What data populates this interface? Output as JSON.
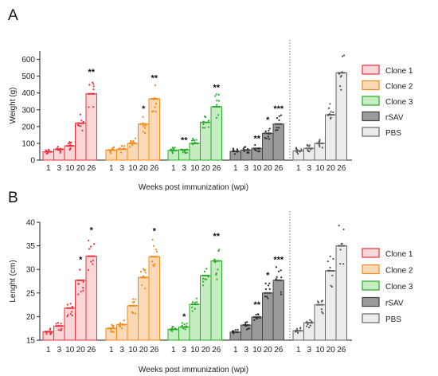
{
  "xlabel": "Weeks post immunization (wpi)",
  "groups": [
    {
      "name": "Clone 1",
      "fill": "#f9d6d8",
      "stroke": "#e8323b",
      "dot": "#e8323b"
    },
    {
      "name": "Clone 2",
      "fill": "#fbd9b5",
      "stroke": "#f28a1c",
      "dot": "#f28a1c"
    },
    {
      "name": "Clone 3",
      "fill": "#c6edc2",
      "stroke": "#2aaa2a",
      "dot": "#2aaa2a"
    },
    {
      "name": "rSAV",
      "fill": "#9a9a9a",
      "stroke": "#444444",
      "dot": "#2a2a2a"
    },
    {
      "name": "PBS",
      "fill": "#ececec",
      "stroke": "#666666",
      "dot": "#555555"
    }
  ],
  "chart_data": [
    {
      "type": "bar",
      "panel": "A",
      "ylabel": "Weight (g)",
      "ylim": [
        0,
        650
      ],
      "yticks": [
        0,
        100,
        200,
        300,
        400,
        500,
        600
      ],
      "categories": [
        "1",
        "3",
        "10",
        "20",
        "26"
      ],
      "series": [
        {
          "name": "Clone 1",
          "values": [
            50,
            65,
            85,
            220,
            395
          ],
          "stars": [
            "",
            "",
            "",
            "",
            "**"
          ]
        },
        {
          "name": "Clone 2",
          "values": [
            60,
            65,
            100,
            215,
            365
          ],
          "stars": [
            "",
            "",
            "",
            "*",
            "**"
          ]
        },
        {
          "name": "Clone 3",
          "values": [
            58,
            62,
            100,
            225,
            318
          ],
          "stars": [
            "",
            "**",
            "",
            "",
            "**"
          ]
        },
        {
          "name": "rSAV",
          "values": [
            52,
            60,
            70,
            160,
            215
          ],
          "stars": [
            "",
            "",
            "**",
            "*",
            "***"
          ]
        },
        {
          "name": "PBS",
          "values": [
            55,
            70,
            100,
            270,
            520
          ],
          "stars": [
            "",
            "",
            "",
            "",
            ""
          ]
        }
      ]
    },
    {
      "type": "bar",
      "panel": "B",
      "ylabel": "Lenght (cm)",
      "ylim": [
        15,
        40
      ],
      "yticks": [
        15,
        20,
        25,
        30,
        35,
        40
      ],
      "categories": [
        "1",
        "3",
        "10",
        "20",
        "26"
      ],
      "series": [
        {
          "name": "Clone 1",
          "values": [
            16.8,
            18.0,
            21.8,
            27.7,
            32.8
          ],
          "stars": [
            "",
            "",
            "",
            "*",
            "*"
          ]
        },
        {
          "name": "Clone 2",
          "values": [
            17.5,
            18.3,
            22.3,
            28.3,
            32.7
          ],
          "stars": [
            "",
            "",
            "",
            "",
            "*"
          ]
        },
        {
          "name": "Clone 3",
          "values": [
            17.3,
            17.8,
            22.6,
            28.7,
            31.8
          ],
          "stars": [
            "",
            "*",
            "",
            "",
            "**"
          ]
        },
        {
          "name": "rSAV",
          "values": [
            16.7,
            18.2,
            19.9,
            25.0,
            27.7
          ],
          "stars": [
            "",
            "",
            "**",
            "*",
            "***"
          ]
        },
        {
          "name": "PBS",
          "values": [
            17.0,
            18.7,
            22.5,
            29.7,
            35.0
          ],
          "stars": [
            "",
            "",
            "",
            "",
            ""
          ]
        }
      ]
    }
  ]
}
